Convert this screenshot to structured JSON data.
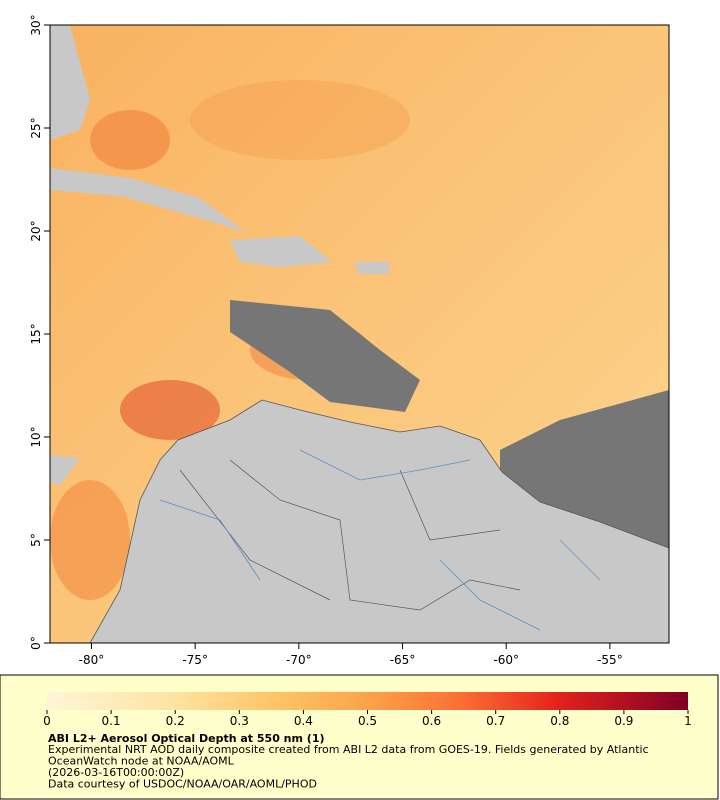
{
  "map": {
    "xlim": [
      -82,
      -52.15
    ],
    "ylim": [
      0,
      30
    ],
    "xticks": [
      {
        "value": -80,
        "label": "-80°"
      },
      {
        "value": -75,
        "label": "-75°"
      },
      {
        "value": -70,
        "label": "-70°"
      },
      {
        "value": -65,
        "label": "-65°"
      },
      {
        "value": -60,
        "label": "-60°"
      },
      {
        "value": -55,
        "label": "-55°"
      }
    ],
    "yticks": [
      {
        "value": 0,
        "label": "0°"
      },
      {
        "value": 5,
        "label": "5°"
      },
      {
        "value": 10,
        "label": "10°"
      },
      {
        "value": 15,
        "label": "15°"
      },
      {
        "value": 20,
        "label": "20°"
      },
      {
        "value": 25,
        "label": "25°"
      },
      {
        "value": 30,
        "label": "30°"
      }
    ]
  },
  "colorbar": {
    "lim": [
      0,
      1
    ],
    "ticks": [
      0,
      0.1,
      0.2,
      0.3,
      0.4,
      0.5,
      0.6,
      0.7,
      0.8,
      0.9,
      1
    ]
  },
  "caption": {
    "title": "ABI L2+ Aerosol Optical Depth at 550 nm (1)",
    "lines": [
      "Experimental NRT AOD daily composite created from ABI L2 data from GOES-19. Fields generated by Atlantic",
      "OceanWatch node at NOAA/AOML",
      "(2026-03-16T00:00:00Z)",
      "Data courtesy of USDOC/NOAA/OAR/AOML/PHOD"
    ]
  }
}
